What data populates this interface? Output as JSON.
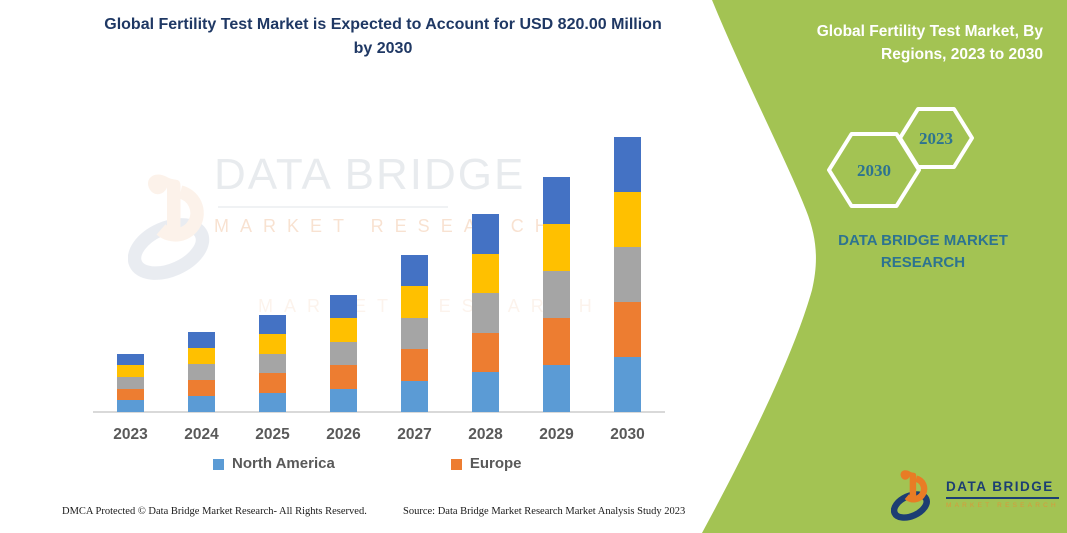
{
  "title": "Global Fertility Test Market is Expected to Account for USD 820.00 Million by 2030",
  "chart_data": {
    "type": "bar",
    "stacked": true,
    "title": "Global Fertility Test Market is Expected to Account for USD 820.00 Million by 2030",
    "value_unit": "USD Million",
    "categories": [
      "2023",
      "2024",
      "2025",
      "2026",
      "2027",
      "2028",
      "2029",
      "2030"
    ],
    "series": [
      {
        "name": "North America",
        "color": "#5b9bd5",
        "values": [
          35,
          48,
          58,
          70,
          94,
          118,
          140,
          164
        ]
      },
      {
        "name": "Europe",
        "color": "#ed7d31",
        "values": [
          35,
          48,
          58,
          70,
          94,
          118,
          140,
          164
        ]
      },
      {
        "name": "",
        "color": "#a5a5a5",
        "values": [
          35,
          48,
          58,
          70,
          94,
          118,
          140,
          164
        ]
      },
      {
        "name": "",
        "color": "#ffc000",
        "values": [
          35,
          48,
          58,
          70,
          94,
          118,
          140,
          164
        ]
      },
      {
        "name": "",
        "color": "#4472c4",
        "values": [
          35,
          48,
          58,
          70,
          94,
          118,
          140,
          164
        ]
      }
    ],
    "totals": [
      175,
      240,
      290,
      350,
      470,
      590,
      700,
      820
    ],
    "legend_entries": [
      "North America",
      "Europe"
    ],
    "legend_position": "bottom",
    "value_axis_visible": false,
    "grid": false,
    "ylim": [
      0,
      840
    ]
  },
  "watermark": {
    "brand": "DATA BRIDGE",
    "sub": "MARKET RESEARCH"
  },
  "footer": {
    "left": "DMCA Protected © Data Bridge Market Research-  All Rights Reserved.",
    "right": "Source: Data Bridge Market Research  Market Analysis Study 2023"
  },
  "side_panel": {
    "heading": "Global Fertility Test Market, By Regions, 2023 to 2030",
    "badge_back_year": "2030",
    "badge_front_year": "2023",
    "brand_caption": "DATA BRIDGE MARKET RESEARCH",
    "logo_title": "DATA BRIDGE",
    "logo_subtitle": "MARKET RESEARCH"
  },
  "colors": {
    "panel_green": "#a3c353",
    "title_navy": "#1f3864",
    "brand_teal": "#2d7390",
    "axis_text": "#595959",
    "logo_navy": "#1c3e73",
    "logo_orange": "#e87c25",
    "hex_outline": "#ffffff"
  }
}
